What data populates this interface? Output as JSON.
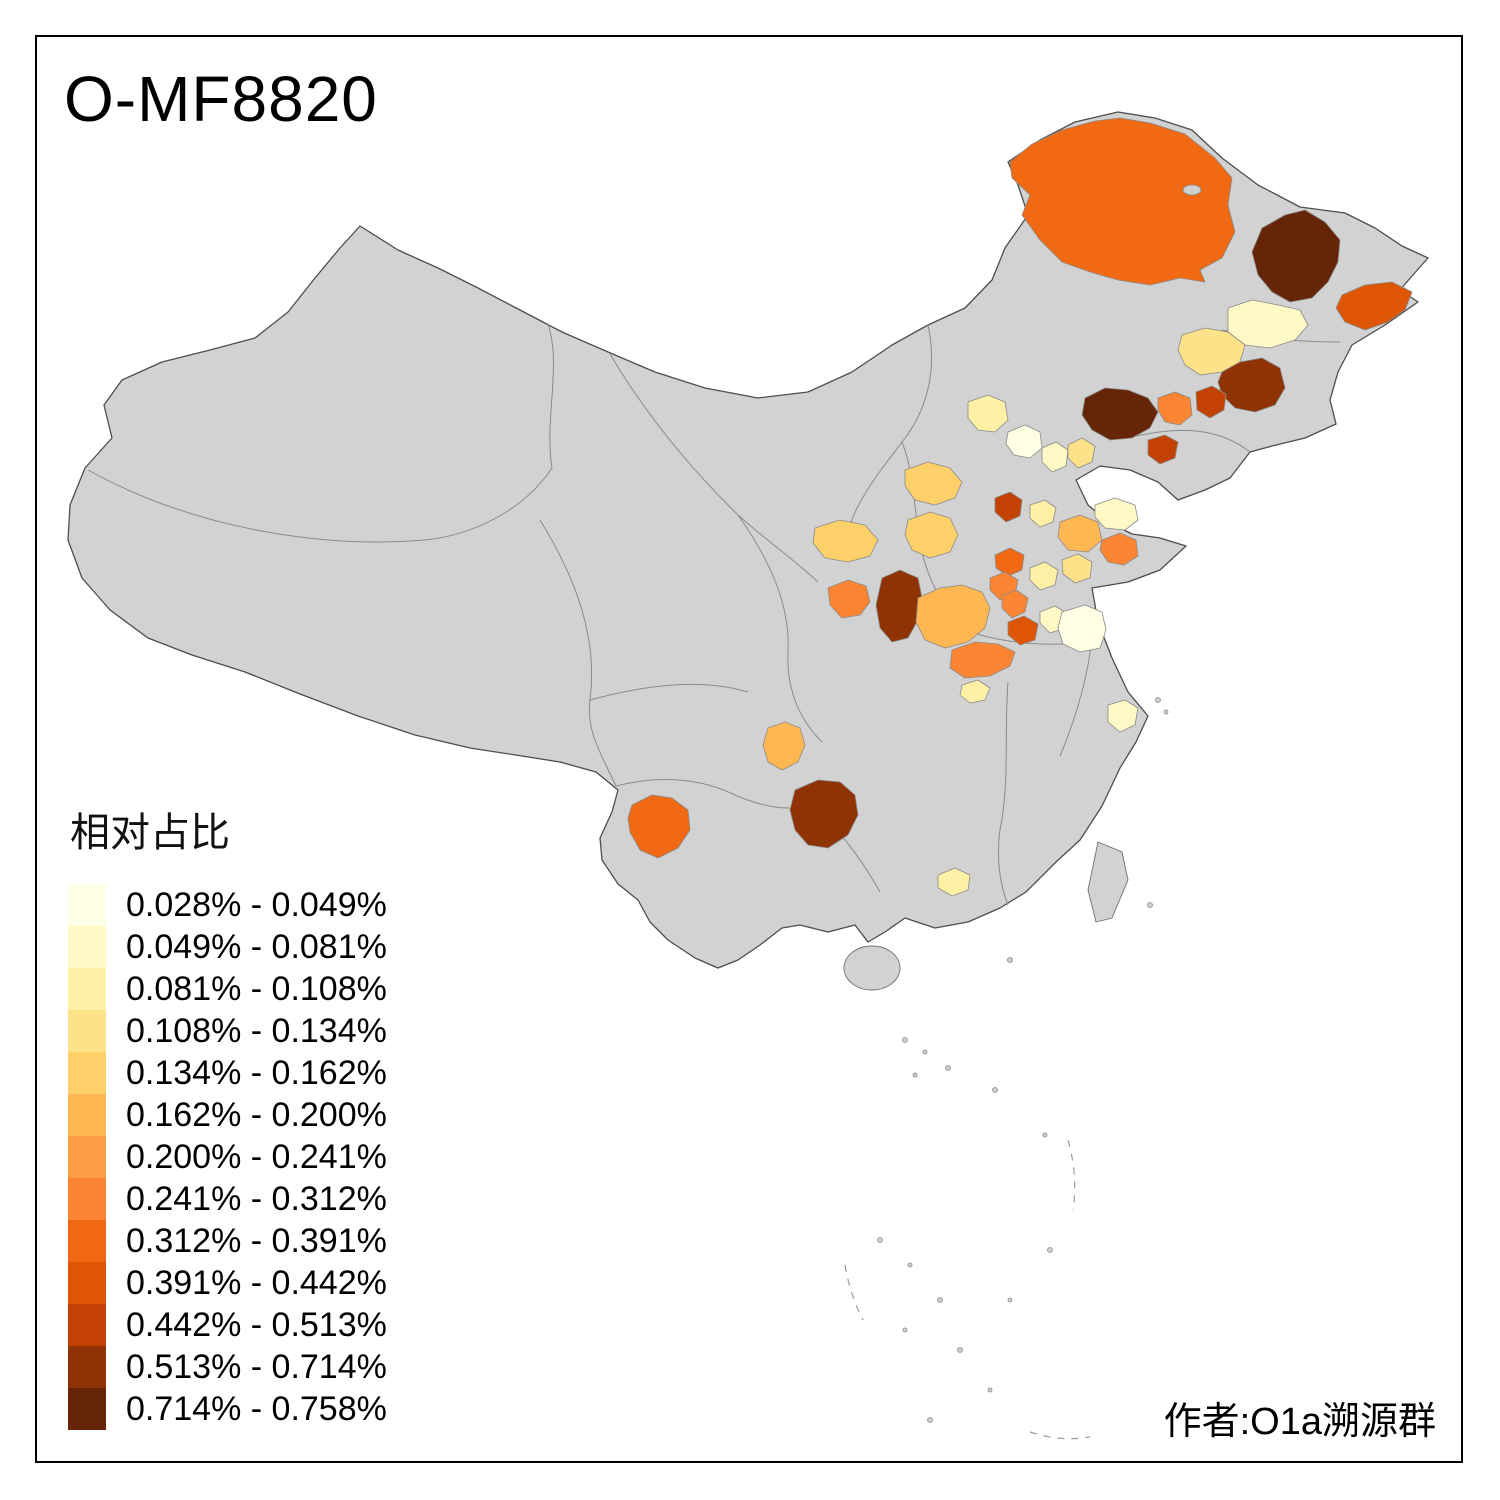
{
  "title": "O-MF8820",
  "author": "作者:O1a溯源群",
  "legend": {
    "title": "相对占比",
    "items": [
      {
        "color": "#FFFFE5",
        "label": "0.028% - 0.049%"
      },
      {
        "color": "#FFF9C6",
        "label": "0.049% - 0.081%"
      },
      {
        "color": "#FEF1A6",
        "label": "0.081% - 0.108%"
      },
      {
        "color": "#FEE289",
        "label": "0.108% - 0.134%"
      },
      {
        "color": "#FED06A",
        "label": "0.134% - 0.162%"
      },
      {
        "color": "#FEB751",
        "label": "0.162% - 0.200%"
      },
      {
        "color": "#FD9E44",
        "label": "0.200% - 0.241%"
      },
      {
        "color": "#FB8533",
        "label": "0.241% - 0.312%"
      },
      {
        "color": "#F16913",
        "label": "0.312% - 0.391%"
      },
      {
        "color": "#DE5505",
        "label": "0.391% - 0.442%"
      },
      {
        "color": "#C34102",
        "label": "0.442% - 0.513%"
      },
      {
        "color": "#903304",
        "label": "0.513% - 0.714%"
      },
      {
        "color": "#662506",
        "label": "0.714% - 0.758%"
      }
    ]
  },
  "map": {
    "base_fill": "#d2d2d2",
    "coast_color": "#4d4d4d",
    "inner_border_color": "#8a8a8a",
    "regions": [
      {
        "id": "r0",
        "color": "#F16913"
      },
      {
        "id": "r1",
        "color": "#662506"
      },
      {
        "id": "r2",
        "color": "#DE5505"
      },
      {
        "id": "r3",
        "color": "#FFF9C6"
      },
      {
        "id": "r4",
        "color": "#FEE289"
      },
      {
        "id": "r5",
        "color": "#903304"
      },
      {
        "id": "r6",
        "color": "#662506"
      },
      {
        "id": "r7",
        "color": "#FB8533"
      },
      {
        "id": "r8",
        "color": "#C34102"
      },
      {
        "id": "r9",
        "color": "#C34102"
      },
      {
        "id": "r10",
        "color": "#FEF1A6"
      },
      {
        "id": "r11",
        "color": "#FFFFE5"
      },
      {
        "id": "r12",
        "color": "#FFF9C6"
      },
      {
        "id": "r13",
        "color": "#FEE289"
      },
      {
        "id": "r14",
        "color": "#FED06A"
      },
      {
        "id": "r15",
        "color": "#C34102"
      },
      {
        "id": "r16",
        "color": "#FEF1A6"
      },
      {
        "id": "r17",
        "color": "#FFF9C6"
      },
      {
        "id": "r18",
        "color": "#FEB751"
      },
      {
        "id": "r19",
        "color": "#FB8533"
      },
      {
        "id": "r20",
        "color": "#FED06A"
      },
      {
        "id": "r21",
        "color": "#FED06A"
      },
      {
        "id": "r22",
        "color": "#F16913"
      },
      {
        "id": "r23",
        "color": "#FB8533"
      },
      {
        "id": "r24",
        "color": "#FEF1A6"
      },
      {
        "id": "r25",
        "color": "#FEE289"
      },
      {
        "id": "r26",
        "color": "#903304"
      },
      {
        "id": "r27",
        "color": "#FEB751"
      },
      {
        "id": "r28",
        "color": "#FB8533"
      },
      {
        "id": "r29",
        "color": "#FB8533"
      },
      {
        "id": "r30",
        "color": "#DE5505"
      },
      {
        "id": "r31",
        "color": "#FFF9C6"
      },
      {
        "id": "r32",
        "color": "#FB8533"
      },
      {
        "id": "r33",
        "color": "#FEF1A6"
      },
      {
        "id": "r34",
        "color": "#FFFFE5"
      },
      {
        "id": "r35",
        "color": "#FFF9C6"
      },
      {
        "id": "r36",
        "color": "#F16913"
      },
      {
        "id": "r37",
        "color": "#FEB751"
      },
      {
        "id": "r38",
        "color": "#903304"
      },
      {
        "id": "r39",
        "color": "#FEF1A6"
      }
    ]
  }
}
